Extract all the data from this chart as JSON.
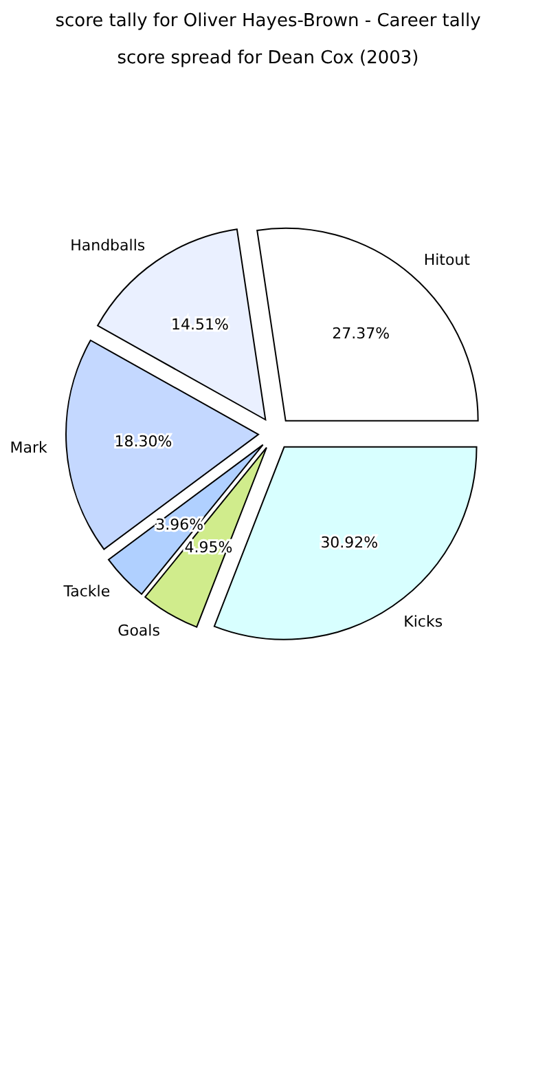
{
  "chart_data": {
    "type": "pie",
    "title": "score tally for Oliver Hayes-Brown - Career tally",
    "subtitle": "score spread for Dean Cox (2003)",
    "categories": [
      "Hitout",
      "Handballs",
      "Mark",
      "Tackle",
      "Goals",
      "Kicks"
    ],
    "values": [
      27.37,
      14.51,
      18.3,
      3.96,
      4.95,
      30.92
    ],
    "colors": [
      "#ffffff",
      "#eaf0ff",
      "#c4d8ff",
      "#b0d0ff",
      "#d0ec8c",
      "#d8ffff"
    ],
    "value_labels": [
      "27.37%",
      "14.51%",
      "18.30%",
      "3.96%",
      "4.95%",
      "30.92%"
    ]
  }
}
